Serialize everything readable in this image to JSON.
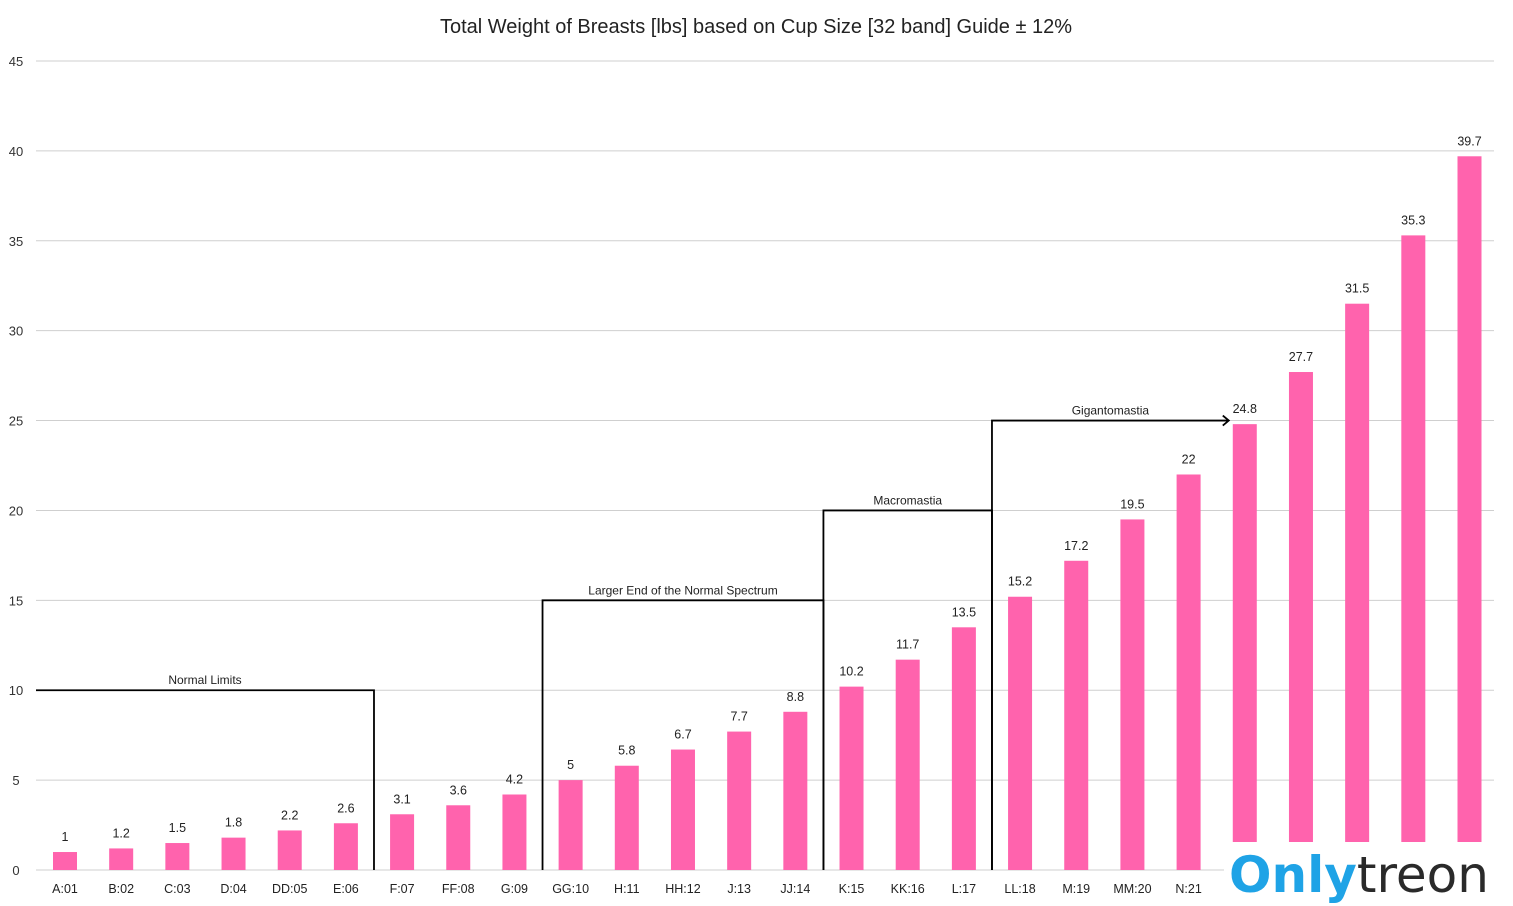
{
  "chart_data": {
    "type": "bar",
    "title": "Total Weight of Breasts [lbs] based on Cup Size [32 band] Guide ± 12%",
    "xlabel": "",
    "ylabel": "",
    "ylim": [
      0,
      45
    ],
    "yticks": [
      0,
      5,
      10,
      15,
      20,
      25,
      30,
      35,
      40,
      45
    ],
    "grid": true,
    "bar_color": "#ff63ad",
    "categories": [
      "A:01",
      "B:02",
      "C:03",
      "D:04",
      "DD:05",
      "E:06",
      "F:07",
      "FF:08",
      "G:09",
      "GG:10",
      "H:11",
      "HH:12",
      "J:13",
      "JJ:14",
      "K:15",
      "KK:16",
      "L:17",
      "LL:18",
      "M:19",
      "MM:20",
      "N:21",
      "",
      "",
      "",
      "",
      ""
    ],
    "values": [
      1,
      1.2,
      1.5,
      1.8,
      2.2,
      2.6,
      3.1,
      3.6,
      4.2,
      5,
      5.8,
      6.7,
      7.7,
      8.8,
      10.2,
      11.7,
      13.5,
      15.2,
      17.2,
      19.5,
      22,
      24.8,
      27.7,
      31.5,
      35.3,
      39.7
    ],
    "data_labels": [
      "1",
      "1.2",
      "1.5",
      "1.8",
      "2.2",
      "2.6",
      "3.1",
      "3.6",
      "4.2",
      "5",
      "5.8",
      "6.7",
      "7.7",
      "8.8",
      "10.2",
      "11.7",
      "13.5",
      "15.2",
      "17.2",
      "19.5",
      "22",
      "24.8",
      "27.7",
      "31.5",
      "35.3",
      "39.7"
    ],
    "annotations": [
      {
        "text": "Normal Limits",
        "y": 10,
        "from": "start",
        "to": "E:06"
      },
      {
        "text": "Larger End of the Normal Spectrum",
        "y": 15,
        "from": "G:09",
        "to": "JJ:14"
      },
      {
        "text": "Macromastia",
        "y": 20,
        "from": "JJ:14",
        "to": "L:17"
      },
      {
        "text": "Gigantomastia",
        "y": 25,
        "from": "L:17",
        "to_index": 21,
        "arrow": true
      }
    ]
  },
  "watermark": {
    "part1": "Only",
    "part2": "treon"
  }
}
